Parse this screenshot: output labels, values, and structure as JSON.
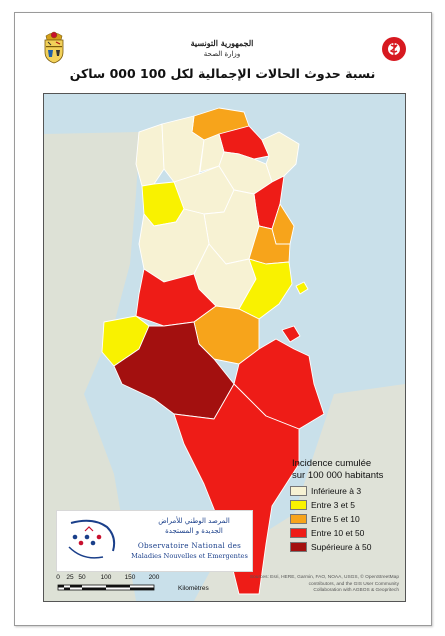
{
  "header": {
    "line1": "الجمهورية التونسية",
    "line2": "وزارة الصحة"
  },
  "title": "نسبة حدوث الحالات الإجمالية لكل 100 000 ساكن",
  "legend": {
    "title_line1": "Incidence cumulée",
    "title_line2": "sur 100 000 habitants",
    "items": [
      {
        "label": "Inférieure à 3",
        "color": "#f7f2d3"
      },
      {
        "label": "Entre 3 et 5",
        "color": "#f9f200"
      },
      {
        "label": "Entre 5 et 10",
        "color": "#f7a41b"
      },
      {
        "label": "Entre 10 et 50",
        "color": "#ee1c17"
      },
      {
        "label": "Supérieure à 50",
        "color": "#a3100f"
      }
    ]
  },
  "onmne": {
    "ar_line1": "المرصد الوطني للأمراض",
    "ar_line2": "الجديدة و المستجدة",
    "fr_line1": "Observatoire National des",
    "fr_line2": "Maladies Nouvelles et Emergentes"
  },
  "scale": {
    "ticks": [
      "0",
      "25",
      "50",
      "100",
      "150",
      "200"
    ],
    "unit": "Kilomètres"
  },
  "credits": {
    "line1": "Sources: Esri, HERE, Garmin, FAO, NOAA, USGS, © OpenStreetMap",
    "line2": "contributors, and the GIS User Community",
    "line3": "Collaboration with AGBOS & Geopritech"
  },
  "icons": {
    "header_left": "tunisia-coat-of-arms-icon",
    "header_right": "ministry-health-logo-icon",
    "onmne": "onmne-logo-icon"
  }
}
